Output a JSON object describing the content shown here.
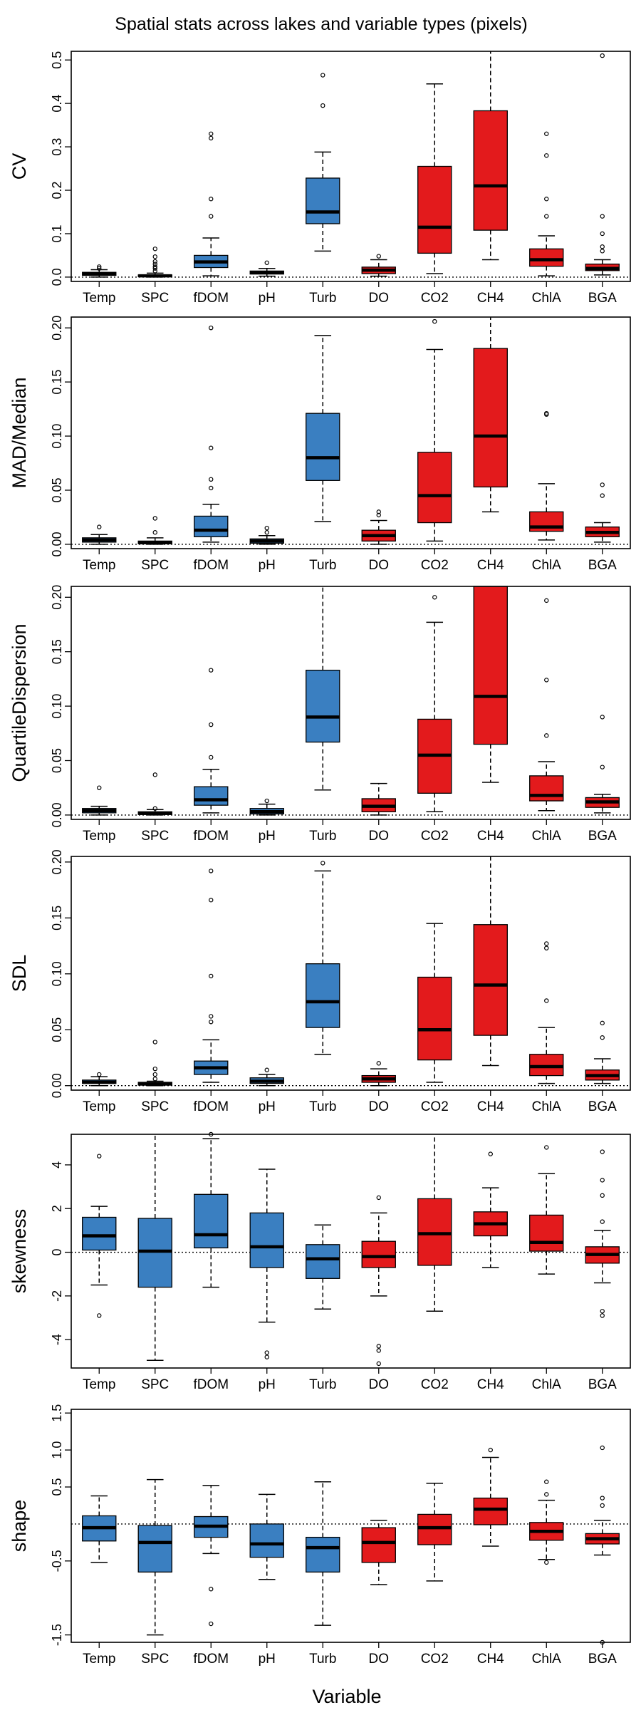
{
  "title": "Spatial stats across lakes and variable types (pixels)",
  "xlabel": "Variable",
  "colors": {
    "physical": "#3a7fc1",
    "biogeochemical": "#e31a1c"
  },
  "chart_data": [
    {
      "type": "boxplot",
      "ylabel": "CV",
      "ylim": [
        -0.01,
        0.52
      ],
      "yticks": [
        "0.0",
        "0.1",
        "0.2",
        "0.3",
        "0.4",
        "0.5"
      ],
      "ytick_values": [
        0,
        0.1,
        0.2,
        0.3,
        0.4,
        0.5
      ],
      "reference_line": 0,
      "categories": [
        "Temp",
        "SPC",
        "fDOM",
        "pH",
        "Turb",
        "DO",
        "CO2",
        "CH4",
        "ChlA",
        "BGA"
      ],
      "groups": [
        "physical",
        "physical",
        "physical",
        "physical",
        "physical",
        "biogeochemical",
        "biogeochemical",
        "biogeochemical",
        "biogeochemical",
        "biogeochemical"
      ],
      "boxes": [
        {
          "lo": 0.0,
          "q1": 0.004,
          "med": 0.007,
          "q3": 0.011,
          "hi": 0.017,
          "out": [
            0.02,
            0.024
          ]
        },
        {
          "lo": 0.0,
          "q1": 0.001,
          "med": 0.003,
          "q3": 0.005,
          "hi": 0.009,
          "out": [
            0.014,
            0.02,
            0.024,
            0.03,
            0.036,
            0.047,
            0.065
          ]
        },
        {
          "lo": 0.003,
          "q1": 0.022,
          "med": 0.035,
          "q3": 0.05,
          "hi": 0.09,
          "out": [
            0.14,
            0.18,
            0.32,
            0.33
          ]
        },
        {
          "lo": 0.002,
          "q1": 0.007,
          "med": 0.01,
          "q3": 0.014,
          "hi": 0.02,
          "out": [
            0.033
          ]
        },
        {
          "lo": 0.06,
          "q1": 0.123,
          "med": 0.15,
          "q3": 0.228,
          "hi": 0.288,
          "out": [
            0.395,
            0.465
          ]
        },
        {
          "lo": 0.002,
          "q1": 0.008,
          "med": 0.016,
          "q3": 0.023,
          "hi": 0.04,
          "out": [
            0.048
          ]
        },
        {
          "lo": 0.008,
          "q1": 0.055,
          "med": 0.115,
          "q3": 0.255,
          "hi": 0.445,
          "out": []
        },
        {
          "lo": 0.04,
          "q1": 0.108,
          "med": 0.21,
          "q3": 0.383,
          "hi": 0.52,
          "out": []
        },
        {
          "lo": 0.003,
          "q1": 0.025,
          "med": 0.04,
          "q3": 0.065,
          "hi": 0.095,
          "out": [
            0.14,
            0.18,
            0.28,
            0.33
          ]
        },
        {
          "lo": 0.005,
          "q1": 0.015,
          "med": 0.02,
          "q3": 0.03,
          "hi": 0.04,
          "out": [
            0.06,
            0.07,
            0.1,
            0.14,
            0.51
          ]
        }
      ]
    },
    {
      "type": "boxplot",
      "ylabel": "MAD/Median",
      "ylim": [
        -0.004,
        0.21
      ],
      "yticks": [
        "0.00",
        "0.05",
        "0.10",
        "0.15",
        "0.20"
      ],
      "ytick_values": [
        0,
        0.05,
        0.1,
        0.15,
        0.2
      ],
      "reference_line": 0,
      "categories": [
        "Temp",
        "SPC",
        "fDOM",
        "pH",
        "Turb",
        "DO",
        "CO2",
        "CH4",
        "ChlA",
        "BGA"
      ],
      "groups": [
        "physical",
        "physical",
        "physical",
        "physical",
        "physical",
        "biogeochemical",
        "biogeochemical",
        "biogeochemical",
        "biogeochemical",
        "biogeochemical"
      ],
      "boxes": [
        {
          "lo": 0.0,
          "q1": 0.002,
          "med": 0.004,
          "q3": 0.006,
          "hi": 0.009,
          "out": [
            0.016
          ]
        },
        {
          "lo": 0.0,
          "q1": 0.0005,
          "med": 0.0015,
          "q3": 0.003,
          "hi": 0.006,
          "out": [
            0.011,
            0.024
          ]
        },
        {
          "lo": 0.002,
          "q1": 0.007,
          "med": 0.013,
          "q3": 0.026,
          "hi": 0.037,
          "out": [
            0.052,
            0.06,
            0.089,
            0.2
          ]
        },
        {
          "lo": 0.0,
          "q1": 0.001,
          "med": 0.003,
          "q3": 0.005,
          "hi": 0.008,
          "out": [
            0.011,
            0.015
          ]
        },
        {
          "lo": 0.021,
          "q1": 0.059,
          "med": 0.08,
          "q3": 0.121,
          "hi": 0.193,
          "out": []
        },
        {
          "lo": 0.0,
          "q1": 0.003,
          "med": 0.008,
          "q3": 0.013,
          "hi": 0.022,
          "out": [
            0.027,
            0.03
          ]
        },
        {
          "lo": 0.003,
          "q1": 0.02,
          "med": 0.045,
          "q3": 0.085,
          "hi": 0.18,
          "out": [
            0.206
          ]
        },
        {
          "lo": 0.03,
          "q1": 0.053,
          "med": 0.1,
          "q3": 0.181,
          "hi": 0.21,
          "out": []
        },
        {
          "lo": 0.004,
          "q1": 0.012,
          "med": 0.016,
          "q3": 0.03,
          "hi": 0.056,
          "out": [
            0.12,
            0.121
          ]
        },
        {
          "lo": 0.002,
          "q1": 0.007,
          "med": 0.011,
          "q3": 0.016,
          "hi": 0.02,
          "out": [
            0.045,
            0.055
          ]
        }
      ]
    },
    {
      "type": "boxplot",
      "ylabel": "QuartileDispersion",
      "ylim": [
        -0.004,
        0.21
      ],
      "yticks": [
        "0.00",
        "0.05",
        "0.10",
        "0.15",
        "0.20"
      ],
      "ytick_values": [
        0,
        0.05,
        0.1,
        0.15,
        0.2
      ],
      "reference_line": 0,
      "categories": [
        "Temp",
        "SPC",
        "fDOM",
        "pH",
        "Turb",
        "DO",
        "CO2",
        "CH4",
        "ChlA",
        "BGA"
      ],
      "groups": [
        "physical",
        "physical",
        "physical",
        "physical",
        "physical",
        "biogeochemical",
        "biogeochemical",
        "biogeochemical",
        "biogeochemical",
        "biogeochemical"
      ],
      "boxes": [
        {
          "lo": 0.0,
          "q1": 0.002,
          "med": 0.004,
          "q3": 0.006,
          "hi": 0.008,
          "out": [
            0.025
          ]
        },
        {
          "lo": 0.0,
          "q1": 0.0005,
          "med": 0.0015,
          "q3": 0.003,
          "hi": 0.005,
          "out": [
            0.006,
            0.037
          ]
        },
        {
          "lo": 0.002,
          "q1": 0.009,
          "med": 0.014,
          "q3": 0.026,
          "hi": 0.042,
          "out": [
            0.053,
            0.083,
            0.133
          ]
        },
        {
          "lo": 0.0,
          "q1": 0.001,
          "med": 0.003,
          "q3": 0.006,
          "hi": 0.01,
          "out": [
            0.013
          ]
        },
        {
          "lo": 0.023,
          "q1": 0.067,
          "med": 0.09,
          "q3": 0.133,
          "hi": 0.21,
          "out": []
        },
        {
          "lo": 0.0,
          "q1": 0.003,
          "med": 0.008,
          "q3": 0.015,
          "hi": 0.029,
          "out": []
        },
        {
          "lo": 0.003,
          "q1": 0.02,
          "med": 0.055,
          "q3": 0.088,
          "hi": 0.177,
          "out": [
            0.2
          ]
        },
        {
          "lo": 0.03,
          "q1": 0.065,
          "med": 0.109,
          "q3": 0.21,
          "hi": 0.21,
          "out": []
        },
        {
          "lo": 0.004,
          "q1": 0.013,
          "med": 0.018,
          "q3": 0.036,
          "hi": 0.049,
          "out": [
            0.073,
            0.124,
            0.197
          ]
        },
        {
          "lo": 0.002,
          "q1": 0.007,
          "med": 0.012,
          "q3": 0.016,
          "hi": 0.019,
          "out": [
            0.044,
            0.09
          ]
        }
      ]
    },
    {
      "type": "boxplot",
      "ylabel": "SDL",
      "ylim": [
        -0.004,
        0.205
      ],
      "yticks": [
        "0.00",
        "0.05",
        "0.10",
        "0.15",
        "0.20"
      ],
      "ytick_values": [
        0,
        0.05,
        0.1,
        0.15,
        0.2
      ],
      "reference_line": 0,
      "categories": [
        "Temp",
        "SPC",
        "fDOM",
        "pH",
        "Turb",
        "DO",
        "CO2",
        "CH4",
        "ChlA",
        "BGA"
      ],
      "groups": [
        "physical",
        "physical",
        "physical",
        "physical",
        "physical",
        "biogeochemical",
        "biogeochemical",
        "biogeochemical",
        "biogeochemical",
        "biogeochemical"
      ],
      "boxes": [
        {
          "lo": 0.0,
          "q1": 0.002,
          "med": 0.003,
          "q3": 0.005,
          "hi": 0.008,
          "out": [
            0.01
          ]
        },
        {
          "lo": 0.0,
          "q1": 0.0005,
          "med": 0.0015,
          "q3": 0.003,
          "hi": 0.004,
          "out": [
            0.006,
            0.01,
            0.015,
            0.039
          ]
        },
        {
          "lo": 0.003,
          "q1": 0.01,
          "med": 0.016,
          "q3": 0.022,
          "hi": 0.041,
          "out": [
            0.057,
            0.062,
            0.098,
            0.166,
            0.192
          ]
        },
        {
          "lo": 0.0,
          "q1": 0.002,
          "med": 0.004,
          "q3": 0.007,
          "hi": 0.01,
          "out": [
            0.014
          ]
        },
        {
          "lo": 0.028,
          "q1": 0.052,
          "med": 0.075,
          "q3": 0.109,
          "hi": 0.192,
          "out": [
            0.199
          ]
        },
        {
          "lo": 0.0,
          "q1": 0.003,
          "med": 0.006,
          "q3": 0.009,
          "hi": 0.015,
          "out": [
            0.02
          ]
        },
        {
          "lo": 0.003,
          "q1": 0.023,
          "med": 0.05,
          "q3": 0.097,
          "hi": 0.145,
          "out": []
        },
        {
          "lo": 0.018,
          "q1": 0.045,
          "med": 0.09,
          "q3": 0.144,
          "hi": 0.205,
          "out": []
        },
        {
          "lo": 0.002,
          "q1": 0.009,
          "med": 0.017,
          "q3": 0.028,
          "hi": 0.052,
          "out": [
            0.076,
            0.123,
            0.127
          ]
        },
        {
          "lo": 0.002,
          "q1": 0.005,
          "med": 0.009,
          "q3": 0.014,
          "hi": 0.024,
          "out": [
            0.043,
            0.056
          ]
        }
      ]
    },
    {
      "type": "boxplot",
      "ylabel": "skewness",
      "ylim": [
        -5.3,
        5.4
      ],
      "yticks": [
        "-4",
        "-2",
        "0",
        "2",
        "4"
      ],
      "ytick_values": [
        -4,
        -2,
        0,
        2,
        4
      ],
      "reference_line": 0,
      "categories": [
        "Temp",
        "SPC",
        "fDOM",
        "pH",
        "Turb",
        "DO",
        "CO2",
        "CH4",
        "ChlA",
        "BGA"
      ],
      "groups": [
        "physical",
        "physical",
        "physical",
        "physical",
        "physical",
        "biogeochemical",
        "biogeochemical",
        "biogeochemical",
        "biogeochemical",
        "biogeochemical"
      ],
      "boxes": [
        {
          "lo": -1.5,
          "q1": 0.1,
          "med": 0.75,
          "q3": 1.6,
          "hi": 2.1,
          "out": [
            4.4,
            -2.9
          ]
        },
        {
          "lo": -4.95,
          "q1": -1.6,
          "med": 0.05,
          "q3": 1.55,
          "hi": 5.4,
          "out": []
        },
        {
          "lo": -1.6,
          "q1": 0.2,
          "med": 0.8,
          "q3": 2.65,
          "hi": 5.2,
          "out": [
            5.4
          ]
        },
        {
          "lo": -3.2,
          "q1": -0.7,
          "med": 0.25,
          "q3": 1.8,
          "hi": 3.8,
          "out": [
            -4.6,
            -4.8
          ]
        },
        {
          "lo": -2.6,
          "q1": -1.2,
          "med": -0.3,
          "q3": 0.35,
          "hi": 1.25,
          "out": []
        },
        {
          "lo": -2.0,
          "q1": -0.7,
          "med": -0.2,
          "q3": 0.5,
          "hi": 1.8,
          "out": [
            2.5,
            -4.3,
            -4.5,
            -5.1
          ]
        },
        {
          "lo": -2.7,
          "q1": -0.6,
          "med": 0.85,
          "q3": 2.45,
          "hi": 5.4,
          "out": []
        },
        {
          "lo": -0.7,
          "q1": 0.75,
          "med": 1.3,
          "q3": 1.85,
          "hi": 2.95,
          "out": [
            4.5
          ]
        },
        {
          "lo": -1.0,
          "q1": 0.05,
          "med": 0.45,
          "q3": 1.7,
          "hi": 3.6,
          "out": [
            4.8
          ]
        },
        {
          "lo": -1.4,
          "q1": -0.5,
          "med": -0.1,
          "q3": 0.25,
          "hi": 1.0,
          "out": [
            1.4,
            2.6,
            3.3,
            4.6,
            -2.7,
            -2.9
          ]
        }
      ]
    },
    {
      "type": "boxplot",
      "ylabel": "shape",
      "ylim": [
        -1.6,
        1.55
      ],
      "yticks": [
        "-1.5",
        "-0.5",
        "0.5",
        "1.0",
        "1.5"
      ],
      "ytick_values": [
        -1.5,
        -0.5,
        0.5,
        1.0,
        1.5
      ],
      "reference_line": 0,
      "categories": [
        "Temp",
        "SPC",
        "fDOM",
        "pH",
        "Turb",
        "DO",
        "CO2",
        "CH4",
        "ChlA",
        "BGA"
      ],
      "groups": [
        "physical",
        "physical",
        "physical",
        "physical",
        "physical",
        "biogeochemical",
        "biogeochemical",
        "biogeochemical",
        "biogeochemical",
        "biogeochemical"
      ],
      "boxes": [
        {
          "lo": -0.52,
          "q1": -0.23,
          "med": -0.05,
          "q3": 0.11,
          "hi": 0.38,
          "out": []
        },
        {
          "lo": -1.5,
          "q1": -0.65,
          "med": -0.25,
          "q3": -0.02,
          "hi": 0.6,
          "out": []
        },
        {
          "lo": -0.4,
          "q1": -0.18,
          "med": -0.03,
          "q3": 0.1,
          "hi": 0.52,
          "out": [
            -0.88,
            -1.35
          ]
        },
        {
          "lo": -0.75,
          "q1": -0.45,
          "med": -0.27,
          "q3": 0.0,
          "hi": 0.4,
          "out": []
        },
        {
          "lo": -1.37,
          "q1": -0.65,
          "med": -0.32,
          "q3": -0.18,
          "hi": 0.57,
          "out": []
        },
        {
          "lo": -0.82,
          "q1": -0.52,
          "med": -0.25,
          "q3": -0.05,
          "hi": 0.05,
          "out": []
        },
        {
          "lo": -0.77,
          "q1": -0.28,
          "med": -0.05,
          "q3": 0.13,
          "hi": 0.55,
          "out": []
        },
        {
          "lo": -0.3,
          "q1": -0.01,
          "med": 0.2,
          "q3": 0.35,
          "hi": 0.9,
          "out": [
            1.0
          ]
        },
        {
          "lo": -0.48,
          "q1": -0.22,
          "med": -0.1,
          "q3": 0.02,
          "hi": 0.32,
          "out": [
            0.4,
            0.57,
            -0.52
          ]
        },
        {
          "lo": -0.42,
          "q1": -0.27,
          "med": -0.2,
          "q3": -0.13,
          "hi": 0.05,
          "out": [
            0.25,
            0.35,
            1.03,
            -1.6
          ]
        }
      ]
    }
  ]
}
